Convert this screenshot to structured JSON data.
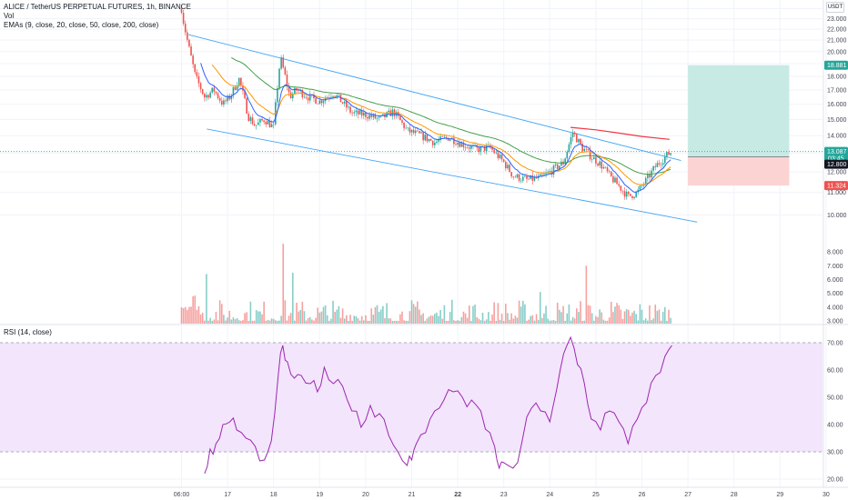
{
  "legend": {
    "title": "ALICE / TetherUS PERPETUAL FUTURES, 1h, BINANCE",
    "vol": "Vol",
    "emas": "EMAs (9, close, 20, close, 50, close, 200, close)"
  },
  "currency": "USDT",
  "rsi_legend": "RSI (14, close)",
  "price_tags": {
    "target": "18.881",
    "current": "13.087",
    "countdown": "03:45",
    "entry": "12.800",
    "stop": "11.324"
  },
  "colors": {
    "up": "#26a69a",
    "down": "#ef5350",
    "ema9": "#2962ff",
    "ema20": "#ff9800",
    "ema50": "#43a047",
    "ema200": "#f23645",
    "channel": "#42a5f5",
    "rsi_line": "#9c27b0",
    "rsi_band": "#f3e5fc",
    "target_zone": "#c8eae5",
    "stop_zone": "#fbd3d3"
  },
  "chart_data": [
    {
      "type": "candlestick",
      "title": "ALICE / TetherUS PERPETUAL FUTURES, 1h, BINANCE",
      "x_ticks": [
        "06:00",
        "17",
        "18",
        "19",
        "20",
        "21",
        "22",
        "23",
        "24",
        "25",
        "26",
        "27",
        "28",
        "29",
        "30"
      ],
      "y_ticks": [
        10,
        11,
        12,
        13,
        14,
        15,
        16,
        17,
        18,
        19,
        20,
        21,
        22,
        23,
        24
      ],
      "y_tick_labels": [
        "10.000",
        "11.000",
        "12.000",
        "13.000",
        "14.000",
        "15.000",
        "16.000",
        "17.000",
        "18.000",
        "19.000",
        "20.000",
        "21.000",
        "22.000",
        "23.000",
        "24.000"
      ],
      "ylim": [
        9.2,
        24.9
      ],
      "scale": "log",
      "close_path_days": [
        16.0,
        16.05,
        16.15,
        16.3,
        16.5,
        16.7,
        16.9,
        17.05,
        17.25,
        17.45,
        17.6,
        17.8,
        18.0,
        18.15,
        18.35,
        18.5,
        18.75,
        19.0,
        19.3,
        19.7,
        20.0,
        20.3,
        20.6,
        20.9,
        21.2,
        21.5,
        21.8,
        22.1,
        22.4,
        22.7,
        23.0,
        23.2,
        23.5,
        23.8,
        24.0,
        24.3,
        24.5,
        24.7,
        24.9,
        25.1,
        25.3,
        25.5,
        25.7,
        25.9,
        26.1,
        26.3,
        26.55,
        26.65
      ],
      "close_path_values": [
        24.0,
        22.5,
        20.5,
        18.0,
        16.5,
        17.0,
        16.0,
        16.5,
        17.8,
        15.2,
        14.6,
        15.0,
        14.5,
        19.5,
        16.5,
        17.0,
        16.5,
        16.2,
        16.8,
        15.4,
        15.3,
        15.0,
        15.5,
        14.3,
        14.0,
        13.6,
        13.9,
        13.5,
        13.2,
        13.3,
        12.5,
        11.8,
        11.6,
        11.7,
        12.0,
        12.5,
        14.2,
        13.3,
        12.8,
        12.4,
        11.8,
        11.3,
        10.8,
        11.0,
        11.6,
        12.3,
        12.9,
        13.09
      ],
      "ema_periods": [
        9,
        20,
        50,
        200
      ],
      "ema200_segment": {
        "x": [
          24.45,
          25.0,
          25.5,
          26.0,
          26.6
        ],
        "y": [
          14.5,
          14.35,
          14.15,
          13.95,
          13.78
        ]
      },
      "channel_upper": {
        "x": [
          16.15,
          26.85
        ],
        "y": [
          21.5,
          12.6
        ]
      },
      "channel_lower": {
        "x": [
          16.55,
          27.2
        ],
        "y": [
          14.4,
          9.7
        ]
      },
      "position": {
        "side": "long",
        "start_day": 27.0,
        "end_day": 29.2,
        "entry": 12.8,
        "target": 18.881,
        "stop": 11.324
      },
      "current_price": 13.087
    },
    {
      "type": "bar",
      "title": "Vol",
      "y_ticks": [
        3,
        4,
        5,
        6,
        7,
        8
      ],
      "y_tick_labels": [
        "3.000",
        "4.000",
        "5.000",
        "6.000",
        "7.000",
        "8.000"
      ],
      "ylim": [
        2.8,
        9.0
      ],
      "spikes": [
        {
          "day": 18.2,
          "value": 8.6
        },
        {
          "day": 24.8,
          "value": 7.0
        },
        {
          "day": 16.55,
          "value": 6.4
        },
        {
          "day": 18.4,
          "value": 6.5
        },
        {
          "day": 23.8,
          "value": 5.1
        }
      ]
    },
    {
      "type": "line",
      "title": "RSI (14, close)",
      "y_ticks": [
        20,
        30,
        40,
        50,
        60,
        70
      ],
      "y_tick_labels": [
        "20.00",
        "30.00",
        "40.00",
        "50.00",
        "60.00",
        "70.00"
      ],
      "ylim": [
        17,
        75
      ],
      "band": [
        30,
        70
      ],
      "x": [
        16.5,
        16.62,
        16.75,
        16.9,
        17.05,
        17.2,
        17.4,
        17.6,
        17.8,
        17.95,
        18.1,
        18.2,
        18.3,
        18.45,
        18.6,
        18.8,
        18.95,
        19.1,
        19.3,
        19.5,
        19.7,
        19.9,
        20.1,
        20.3,
        20.5,
        20.7,
        20.9,
        21.0,
        21.1,
        21.3,
        21.5,
        21.7,
        21.9,
        22.1,
        22.3,
        22.5,
        22.7,
        22.8,
        22.9,
        23.0,
        23.2,
        23.4,
        23.6,
        23.8,
        24.0,
        24.15,
        24.3,
        24.45,
        24.6,
        24.75,
        24.9,
        25.1,
        25.3,
        25.5,
        25.7,
        25.9,
        26.1,
        26.3,
        26.5,
        26.65
      ],
      "values": [
        22,
        31,
        33,
        40,
        41,
        38,
        35,
        32,
        27,
        34,
        58,
        69,
        63,
        57,
        58,
        55,
        52,
        61,
        55,
        54,
        45,
        39,
        47,
        44,
        36,
        30,
        25,
        27,
        33,
        37,
        45,
        49,
        52,
        50,
        49,
        45,
        37,
        32,
        24,
        26,
        24,
        34,
        46,
        45,
        41,
        53,
        66,
        72,
        62,
        55,
        42,
        38,
        45,
        41,
        33,
        42,
        48,
        58,
        65,
        69
      ]
    }
  ]
}
